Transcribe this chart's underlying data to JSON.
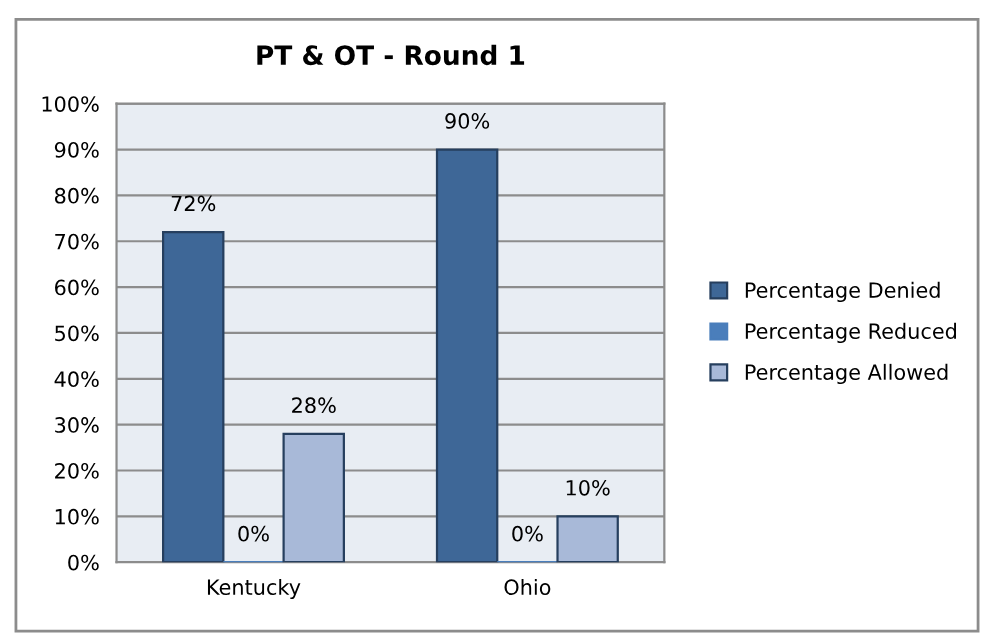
{
  "chart_data": {
    "type": "bar",
    "title": "PT & OT - Round 1",
    "categories": [
      "Kentucky",
      "Ohio"
    ],
    "series": [
      {
        "name": "Percentage Denied",
        "color": "#3e6797",
        "values": [
          72,
          90
        ],
        "value_labels": [
          "72%",
          "90%"
        ]
      },
      {
        "name": "Percentage Reduced",
        "color": "#4a7ebb",
        "values": [
          0,
          0
        ],
        "value_labels": [
          "0%",
          "0%"
        ]
      },
      {
        "name": "Percentage Allowed",
        "color": "#a8b9d8",
        "values": [
          28,
          10
        ],
        "value_labels": [
          "28%",
          "10%"
        ]
      }
    ],
    "ylim": [
      0,
      100
    ],
    "yticks": [
      {
        "value": 0,
        "label": "0%"
      },
      {
        "value": 10,
        "label": "10%"
      },
      {
        "value": 20,
        "label": "20%"
      },
      {
        "value": 30,
        "label": "30%"
      },
      {
        "value": 40,
        "label": "40%"
      },
      {
        "value": 50,
        "label": "50%"
      },
      {
        "value": 60,
        "label": "60%"
      },
      {
        "value": 70,
        "label": "70%"
      },
      {
        "value": 80,
        "label": "80%"
      },
      {
        "value": 90,
        "label": "90%"
      },
      {
        "value": 100,
        "label": "100%"
      }
    ],
    "grid": "y",
    "legend": "right"
  }
}
